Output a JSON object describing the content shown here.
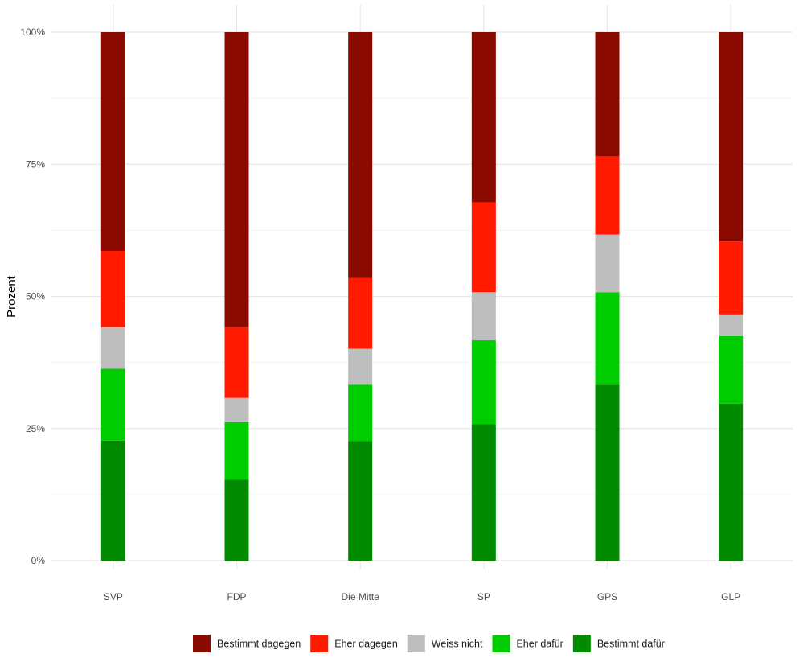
{
  "chart_data": {
    "type": "bar",
    "stacked": true,
    "orientation": "vertical",
    "categories": [
      "SVP",
      "FDP",
      "Die Mitte",
      "SP",
      "GPS",
      "GLP"
    ],
    "ylabel": "Prozent",
    "xlabel": "",
    "ylim": [
      0,
      100
    ],
    "y_ticks": [
      0,
      25,
      50,
      75,
      100
    ],
    "y_tick_labels": [
      "0%",
      "25%",
      "50%",
      "75%",
      "100%"
    ],
    "grid": true,
    "legend_position": "bottom",
    "series": [
      {
        "name": "Bestimmt dafür",
        "color": "#008b00",
        "values": [
          22.7,
          15.3,
          22.6,
          25.8,
          33.3,
          29.7
        ]
      },
      {
        "name": "Eher dafür",
        "color": "#00cd00",
        "values": [
          13.6,
          10.9,
          10.7,
          15.9,
          17.5,
          12.8
        ]
      },
      {
        "name": "Weiss nicht",
        "color": "#bebebe",
        "values": [
          7.9,
          4.6,
          6.8,
          9.1,
          10.9,
          4.1
        ]
      },
      {
        "name": "Eher dagegen",
        "color": "#ff1a00",
        "values": [
          14.4,
          13.4,
          13.4,
          17.0,
          14.8,
          13.8
        ]
      },
      {
        "name": "Bestimmt dagegen",
        "color": "#8b0a00",
        "values": [
          41.4,
          55.8,
          46.5,
          32.2,
          23.5,
          39.6
        ]
      }
    ],
    "legend_order": [
      "Bestimmt dagegen",
      "Eher dagegen",
      "Weiss nicht",
      "Eher dafür",
      "Bestimmt dafür"
    ]
  }
}
